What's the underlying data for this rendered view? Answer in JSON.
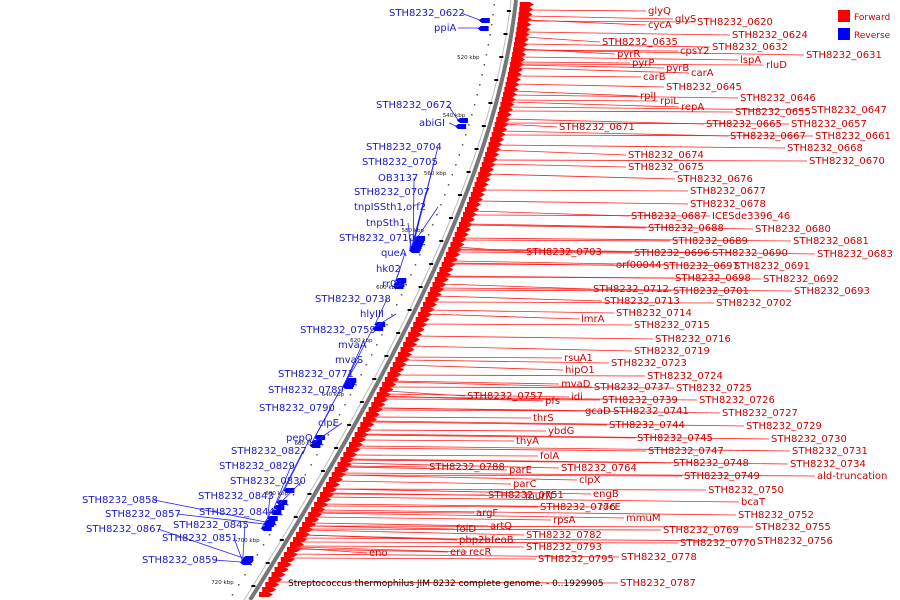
{
  "legend": {
    "forward_label": "Forward",
    "reverse_label": "Reverse",
    "forward_color": "#ff0000",
    "reverse_color": "#0000ff"
  },
  "footer": {
    "title": "Streptococcus thermophilus JIM 8232 complete genome. - 0..1929905"
  },
  "ticks": [
    "520 kbp",
    "540 kbp",
    "560 kbp",
    "580 kbp",
    "600 kbp",
    "620 kbp",
    "640 kbp",
    "660 kbp",
    "680 kbp",
    "700 kbp",
    "720 kbp"
  ],
  "forward_genes": [
    "glyQ",
    "glyS",
    "cycA",
    "STH8232_0620",
    "STH8232_0624",
    "STH8232_0635",
    "cpsY2",
    "STH8232_0632",
    "pyrR",
    "pyrP",
    "lspA",
    "STH8232_0631",
    "rluD",
    "pyrB",
    "carA",
    "carB",
    "STH8232_0645",
    "rplJ",
    "rpiL",
    "STH8232_0646",
    "repA",
    "STH8232_0655",
    "STH8232_0647",
    "STH8232_0665",
    "STH8232_0657",
    "STH8232_0671",
    "STH8232_0667",
    "STH8232_0661",
    "STH8232_0668",
    "STH8232_0674",
    "STH8232_0670",
    "STH8232_0675",
    "STH8232_0676",
    "STH8232_0677",
    "STH8232_0678",
    "STH8232_0687",
    "ICESde3396_46",
    "STH8232_0688",
    "STH8232_0680",
    "STH8232_0689",
    "STH8232_0681",
    "STH8232_0703",
    "STH8232_0696",
    "STH8232_0690",
    "STH8232_0683",
    "orf00044",
    "STH8232_0697",
    "STH8232_0691",
    "STH8232_0698",
    "STH8232_0692",
    "STH8232_0712",
    "STH8232_0701",
    "STH8232_0693",
    "STH8232_0713",
    "STH8232_0702",
    "STH8232_0714",
    "lmrA",
    "STH8232_0715",
    "STH8232_0716",
    "STH8232_0719",
    "rsuA1",
    "STH8232_0723",
    "hipO1",
    "STH8232_0724",
    "mvaD",
    "STH8232_0737",
    "STH8232_0725",
    "idi",
    "STH8232_0757",
    "STH8232_0739",
    "STH8232_0726",
    "pfs",
    "gcaD",
    "STH8232_0741",
    "STH8232_0727",
    "thrS",
    "STH8232_0744",
    "STH8232_0729",
    "ybdG",
    "STH8232_0745",
    "STH8232_0730",
    "thyA",
    "STH8232_0747",
    "STH8232_0731",
    "folA",
    "STH8232_0748",
    "STH8232_0734",
    "STH8232_0788",
    "parE",
    "STH8232_0764",
    "STH8232_0749",
    "ald-truncation",
    "clpX",
    "STH8232_0750",
    "parC",
    "engB",
    "STH8232_0751",
    "murN",
    "bcaT",
    "STH8232_0776",
    "rocE",
    "STH8232_0752",
    "argF",
    "rpsA",
    "mmuM",
    "STH8232_0755",
    "artQ",
    "STH8232_0782",
    "STH8232_0769",
    "folD",
    "feoB",
    "STH8232_0770",
    "STH8232_0756",
    "pbp2b",
    "STH8232_0793",
    "era",
    "recR",
    "STH8232_0795",
    "STH8232_0778",
    "eno",
    "STH8232_0787"
  ],
  "reverse_genes": [
    "STH8232_0622",
    "ppiA",
    "STH8232_0672",
    "abiGI",
    "STH8232_0704",
    "STH8232_0705",
    "OB3137",
    "STH8232_0707",
    "tnpISSth1,orf2",
    "tnpSth1",
    "STH8232_0710",
    "queA",
    "hk02",
    "rr02",
    "STH8232_0738",
    "hlyIII",
    "STH8232_0759",
    "mvaA",
    "mvaS",
    "STH8232_0771",
    "STH8232_0789",
    "STH8232_0790",
    "clpE",
    "pepQ",
    "STH8232_0827",
    "STH8232_0829",
    "STH8232_0830",
    "STH8232_0843",
    "STH8232_0858",
    "STH8232_0857",
    "STH8232_0844",
    "STH8232_0867",
    "STH8232_0845",
    "STH8232_0851",
    "STH8232_0859"
  ]
}
